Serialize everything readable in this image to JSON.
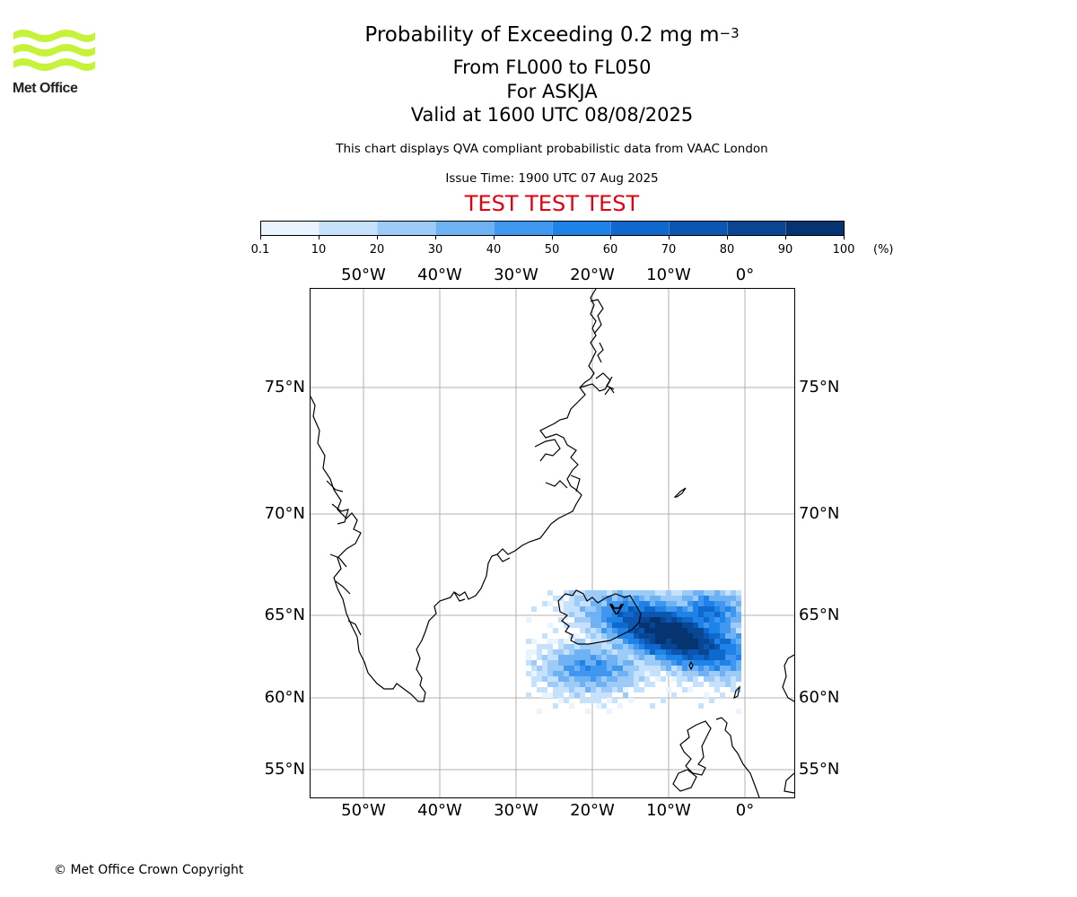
{
  "header": {
    "title_main": "Probability of Exceeding 0.2 mg m",
    "title_sup": "−3",
    "flight_levels": "From FL000 to FL050",
    "volcano": "For ASKJA",
    "valid_time": "Valid at 1600 UTC 08/08/2025",
    "note": "This chart displays QVA compliant probabilistic data from VAAC London",
    "issue_time": "Issue Time: 1900 UTC 07 Aug 2025",
    "test_banner": "TEST TEST TEST"
  },
  "logo": {
    "text": "Met Office",
    "color": "#c6f23a"
  },
  "colorbar": {
    "ticks": [
      "0.1",
      "10",
      "20",
      "30",
      "40",
      "50",
      "60",
      "70",
      "80",
      "90",
      "100"
    ],
    "unit": "(%)",
    "colors": [
      "#eaf4fe",
      "#c5e1fb",
      "#9dcbf7",
      "#6eb2f4",
      "#3f97ef",
      "#1f82e6",
      "#0f69cc",
      "#0a56b0",
      "#084592",
      "#063470"
    ]
  },
  "map": {
    "lon_labels": [
      "50°W",
      "40°W",
      "30°W",
      "20°W",
      "10°W",
      "0°"
    ],
    "lat_labels": [
      "75°N",
      "70°N",
      "65°N",
      "60°N",
      "55°N"
    ],
    "grid_color": "#b0b0b0"
  },
  "footer": {
    "copyright": "© Met Office Crown Copyright"
  }
}
